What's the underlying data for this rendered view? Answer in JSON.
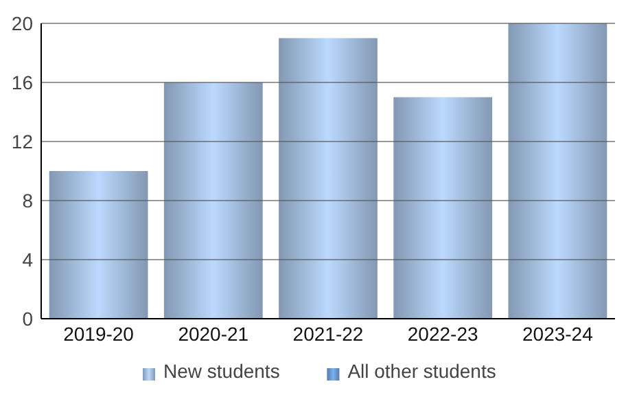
{
  "chart_data": {
    "type": "bar",
    "categories": [
      "2019-20",
      "2020-21",
      "2021-22",
      "2022-23",
      "2023-24"
    ],
    "series": [
      {
        "name": "New students",
        "color": "#9fb9d8",
        "values": [
          10,
          16,
          19,
          15,
          20
        ]
      },
      {
        "name": "All other students",
        "color": "#6a96cc",
        "values": [
          0,
          0,
          0,
          0,
          0
        ]
      }
    ],
    "ylim": [
      0,
      20
    ],
    "yticks": [
      0,
      4,
      8,
      12,
      16,
      20
    ],
    "grid": "y",
    "legend": "bottom"
  }
}
